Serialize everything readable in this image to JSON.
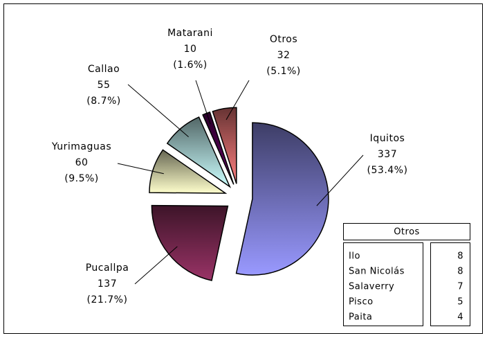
{
  "chart_data": {
    "type": "pie",
    "categories": [
      "Iquitos",
      "Pucallpa",
      "Yurimaguas",
      "Callao",
      "Matarani",
      "Otros"
    ],
    "values": [
      337,
      137,
      60,
      55,
      10,
      32
    ],
    "percent_labels": [
      "(53.4%)",
      "(21.7%)",
      "(9.5%)",
      "(8.7%)",
      "(1.6%)",
      "(5.1%)"
    ],
    "colors": [
      "#9999ff",
      "#993366",
      "#ffffcc",
      "#ccffff",
      "#660066",
      "#ff8080"
    ],
    "exploded": true,
    "otros_table": {
      "title": "Otros",
      "rows": [
        [
          "Ilo",
          8
        ],
        [
          "San Nicolás",
          8
        ],
        [
          "Salaverry",
          7
        ],
        [
          "Pisco",
          5
        ],
        [
          "Paita",
          4
        ]
      ]
    }
  }
}
